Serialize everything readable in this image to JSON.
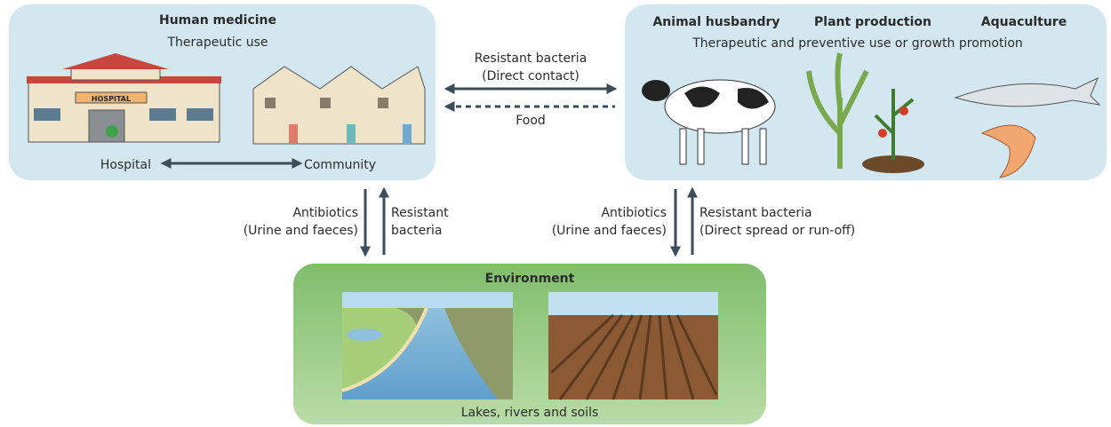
{
  "human_medicine": {
    "title": "Human medicine",
    "subtitle": "Therapeutic use",
    "hospital_sign": "HOSPITAL",
    "hospital_label": "Hospital",
    "community_label": "Community"
  },
  "agriculture": {
    "headings": [
      "Animal husbandry",
      "Plant production",
      "Aquaculture"
    ],
    "subtitle": "Therapeutic and preventive use or growth promotion"
  },
  "links": {
    "direct_contact": [
      "Resistant bacteria",
      "(Direct contact)"
    ],
    "food": "Food"
  },
  "to_environment": [
    {
      "down": [
        "Antibiotics",
        "(Urine and faeces)"
      ],
      "up": [
        "Resistant",
        "bacteria"
      ]
    },
    {
      "down": [
        "Antibiotics",
        "(Urine and faeces)"
      ],
      "up": [
        "Resistant bacteria",
        "(Direct spread or run-off)"
      ]
    }
  ],
  "environment": {
    "title": "Environment",
    "caption": "Lakes, rivers and soils"
  }
}
